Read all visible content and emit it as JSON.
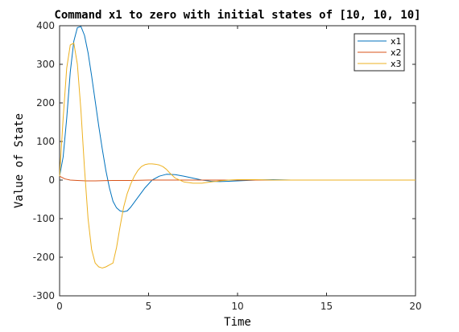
{
  "chart_data": {
    "type": "line",
    "title": "Command x1 to zero with initial states of [10, 10, 10]",
    "xlabel": "Time",
    "ylabel": "Value of State",
    "xlim": [
      0,
      20
    ],
    "ylim": [
      -300,
      400
    ],
    "xticks": [
      "0",
      "5",
      "10",
      "15",
      "20"
    ],
    "yticks": [
      "-300",
      "-200",
      "-100",
      "0",
      "100",
      "200",
      "300",
      "400"
    ],
    "grid": false,
    "legend_position": "top-right",
    "series": [
      {
        "name": "x1",
        "color": "#0072BD",
        "x": [
          0,
          0.2,
          0.4,
          0.6,
          0.8,
          1.0,
          1.2,
          1.4,
          1.6,
          1.8,
          2.0,
          2.2,
          2.4,
          2.6,
          2.8,
          3.0,
          3.2,
          3.4,
          3.6,
          3.8,
          4.0,
          4.4,
          4.8,
          5.2,
          5.6,
          6.0,
          6.5,
          7.0,
          7.5,
          8.0,
          8.5,
          9.0,
          9.5,
          10.0,
          11.0,
          12.0,
          13.0,
          15.0,
          20.0
        ],
        "y": [
          10,
          60,
          160,
          280,
          360,
          395,
          398,
          375,
          330,
          270,
          205,
          140,
          80,
          25,
          -20,
          -55,
          -72,
          -80,
          -82,
          -80,
          -70,
          -45,
          -20,
          0,
          10,
          15,
          14,
          10,
          5,
          0,
          -3,
          -4,
          -3,
          -2,
          0,
          1,
          0,
          0,
          0
        ]
      },
      {
        "name": "x2",
        "color": "#D95319",
        "x": [
          0,
          0.3,
          0.6,
          1.0,
          1.5,
          2.0,
          3.0,
          4.0,
          5.0,
          6.0,
          7.0,
          8.0,
          10.0,
          12.0,
          20.0
        ],
        "y": [
          10,
          3,
          0,
          -1,
          -2,
          -2,
          -1,
          -1,
          0,
          0,
          0,
          0,
          0,
          0,
          0
        ]
      },
      {
        "name": "x3",
        "color": "#EDB120",
        "x": [
          0,
          0.2,
          0.4,
          0.6,
          0.8,
          1.0,
          1.2,
          1.4,
          1.6,
          1.8,
          2.0,
          2.2,
          2.4,
          2.6,
          2.8,
          3.0,
          3.2,
          3.4,
          3.6,
          3.8,
          4.0,
          4.2,
          4.4,
          4.6,
          4.8,
          5.0,
          5.2,
          5.4,
          5.6,
          5.8,
          6.0,
          6.2,
          6.5,
          7.0,
          7.5,
          8.0,
          8.5,
          9.0,
          9.5,
          10.0,
          11.0,
          12.0,
          13.0,
          15.0,
          20.0
        ],
        "y": [
          10,
          160,
          290,
          350,
          355,
          300,
          180,
          30,
          -100,
          -180,
          -215,
          -225,
          -228,
          -225,
          -220,
          -215,
          -175,
          -120,
          -70,
          -35,
          -10,
          10,
          25,
          35,
          40,
          42,
          42,
          41,
          39,
          35,
          28,
          18,
          5,
          -5,
          -8,
          -8,
          -5,
          -2,
          0,
          1,
          1,
          0,
          0,
          0,
          0
        ]
      }
    ]
  }
}
